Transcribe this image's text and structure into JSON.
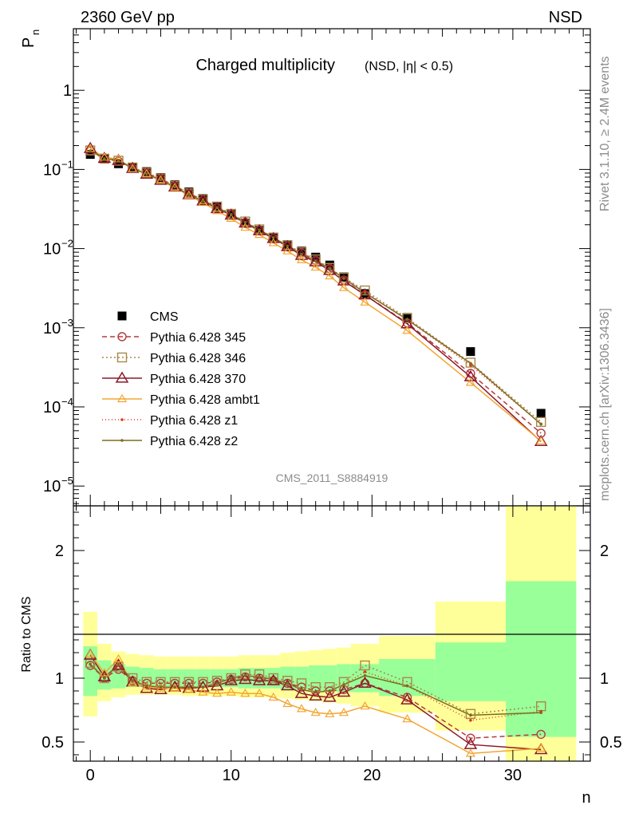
{
  "header": {
    "left": "2360 GeV pp",
    "right": "NSD"
  },
  "side_labels": {
    "top": "Rivet 3.1.10, ≥ 2.4M events",
    "bottom": "mcplots.cern.ch [arXiv:1306.3436]"
  },
  "colors": {
    "cms": "#000000",
    "p345": "#b5383d",
    "p346": "#a8884a",
    "p370": "#8b1a2b",
    "ambt1": "#f3a530",
    "z1": "#e8321e",
    "z2": "#7a6e1e",
    "band_inner": "#99ff99",
    "band_outer": "#ffff99"
  },
  "chart_data": [
    {
      "type": "line",
      "title": "Charged multiplicity",
      "subtitle": "(NSD, |η| < 0.5)",
      "ylabel": "P",
      "ylabel_sub": "n",
      "ylog": true,
      "ylim": [
        5.62e-06,
        6.0
      ],
      "xlim": [
        -1.2,
        35.5
      ],
      "yticks": [
        {
          "value": 1e-05,
          "base": "10",
          "exp": "−5"
        },
        {
          "value": 0.0001,
          "base": "10",
          "exp": "−4"
        },
        {
          "value": 0.001,
          "base": "10",
          "exp": "−3"
        },
        {
          "value": 0.01,
          "base": "10",
          "exp": "−2"
        },
        {
          "value": 0.1,
          "base": "10",
          "exp": "−1"
        },
        {
          "value": 1,
          "base": "1",
          "exp": ""
        }
      ],
      "watermark": "CMS_2011_S8884919",
      "legend_position": "center-left",
      "x": [
        0,
        1,
        2,
        3,
        4,
        5,
        6,
        7,
        8,
        9,
        10,
        11,
        12,
        13,
        14,
        15,
        16,
        17,
        18,
        19.5,
        22.5,
        27,
        32
      ],
      "series": [
        {
          "name": "CMS",
          "key": "cms",
          "marker": "square",
          "values": [
            0.155,
            0.136,
            0.118,
            0.106,
            0.094,
            0.079,
            0.064,
            0.052,
            0.043,
            0.034,
            0.027,
            0.021,
            0.017,
            0.0138,
            0.0112,
            0.0093,
            0.0078,
            0.0062,
            0.0044,
            0.0027,
            0.00135,
            0.0005,
            8.3e-05
          ]
        },
        {
          "name": "Pythia 6.428 345",
          "key": "p345",
          "marker": "circle",
          "dash": "6,4",
          "values": [
            0.171,
            0.136,
            0.127,
            0.104,
            0.09,
            0.076,
            0.062,
            0.05,
            0.041,
            0.033,
            0.027,
            0.0215,
            0.0172,
            0.0135,
            0.0108,
            0.0088,
            0.0071,
            0.0056,
            0.004,
            0.0026,
            0.00115,
            0.000265,
            4.65e-05
          ]
        },
        {
          "name": "Pythia 6.428 346",
          "key": "p346",
          "marker": "open-square",
          "dash": "2,3",
          "values": [
            0.174,
            0.137,
            0.129,
            0.106,
            0.091,
            0.077,
            0.062,
            0.05,
            0.042,
            0.034,
            0.0275,
            0.022,
            0.0175,
            0.0138,
            0.011,
            0.009,
            0.0073,
            0.0057,
            0.0043,
            0.00296,
            0.00132,
            0.000362,
            6.45e-05
          ]
        },
        {
          "name": "Pythia 6.428 370",
          "key": "p370",
          "marker": "triangle",
          "dash": "",
          "values": [
            0.184,
            0.138,
            0.13,
            0.103,
            0.087,
            0.073,
            0.06,
            0.048,
            0.04,
            0.032,
            0.0265,
            0.021,
            0.0168,
            0.0134,
            0.0106,
            0.0082,
            0.0068,
            0.0053,
            0.0039,
            0.0026,
            0.00112,
            0.00024,
            3.65e-05
          ]
        },
        {
          "name": "Pythia 6.428 ambt1",
          "key": "ambt1",
          "marker": "small-triangle",
          "dash": "",
          "values": [
            0.184,
            0.142,
            0.135,
            0.102,
            0.088,
            0.073,
            0.059,
            0.047,
            0.038,
            0.03,
            0.024,
            0.0185,
            0.015,
            0.0118,
            0.0093,
            0.0072,
            0.0058,
            0.0045,
            0.0032,
            0.0021,
            0.00092,
            0.000203,
            3.7e-05
          ]
        },
        {
          "name": "Pythia 6.428 z1",
          "key": "z1",
          "marker": "dot",
          "dash": "1,3",
          "values": [
            0.172,
            0.137,
            0.13,
            0.104,
            0.088,
            0.074,
            0.06,
            0.048,
            0.04,
            0.033,
            0.027,
            0.0215,
            0.0172,
            0.0138,
            0.0108,
            0.0085,
            0.007,
            0.0056,
            0.0042,
            0.00283,
            0.00127,
            0.000335,
            6.1e-05
          ]
        },
        {
          "name": "Pythia 6.428 z2",
          "key": "z2",
          "marker": "dot",
          "dash": "",
          "values": [
            0.172,
            0.137,
            0.131,
            0.104,
            0.088,
            0.074,
            0.06,
            0.048,
            0.04,
            0.033,
            0.027,
            0.0215,
            0.0172,
            0.0138,
            0.0108,
            0.0085,
            0.007,
            0.0056,
            0.0042,
            0.00276,
            0.00127,
            0.000355,
            6.05e-05
          ]
        }
      ]
    },
    {
      "type": "line",
      "ylabel": "Ratio to CMS",
      "xlabel": "n",
      "ylim": [
        0.35,
        2.35
      ],
      "xlim": [
        -1.2,
        35.5
      ],
      "xticks": [
        0,
        10,
        20,
        30
      ],
      "yticks": [
        0.5,
        1,
        2
      ],
      "reference": 1,
      "band_x": [
        -0.5,
        0.5,
        1.5,
        2.5,
        3.5,
        4.5,
        5.5,
        6.5,
        7.5,
        8.5,
        9.5,
        10.5,
        11.5,
        12.5,
        13.5,
        14.5,
        15.5,
        16.5,
        17.5,
        18.5,
        20.5,
        24.5,
        29.5,
        34.5
      ],
      "band_inner": [
        [
          0.86,
          1.25
        ],
        [
          0.91,
          1.14
        ],
        [
          0.92,
          1.11
        ],
        [
          0.93,
          1.09
        ],
        [
          0.93,
          1.08
        ],
        [
          0.93,
          1.07
        ],
        [
          0.93,
          1.07
        ],
        [
          0.93,
          1.07
        ],
        [
          0.93,
          1.07
        ],
        [
          0.93,
          1.07
        ],
        [
          0.93,
          1.07
        ],
        [
          0.92,
          1.08
        ],
        [
          0.92,
          1.08
        ],
        [
          0.92,
          1.08
        ],
        [
          0.91,
          1.09
        ],
        [
          0.91,
          1.09
        ],
        [
          0.9,
          1.1
        ],
        [
          0.9,
          1.1
        ],
        [
          0.89,
          1.11
        ],
        [
          0.89,
          1.11
        ],
        [
          0.86,
          1.15
        ],
        [
          0.82,
          1.28
        ],
        [
          0.54,
          1.76
        ]
      ],
      "band_outer": [
        [
          0.7,
          1.52
        ],
        [
          0.82,
          1.27
        ],
        [
          0.85,
          1.21
        ],
        [
          0.87,
          1.19
        ],
        [
          0.87,
          1.18
        ],
        [
          0.87,
          1.17
        ],
        [
          0.87,
          1.17
        ],
        [
          0.86,
          1.17
        ],
        [
          0.86,
          1.17
        ],
        [
          0.86,
          1.17
        ],
        [
          0.86,
          1.17
        ],
        [
          0.85,
          1.18
        ],
        [
          0.85,
          1.18
        ],
        [
          0.85,
          1.18
        ],
        [
          0.84,
          1.2
        ],
        [
          0.83,
          1.21
        ],
        [
          0.82,
          1.22
        ],
        [
          0.81,
          1.23
        ],
        [
          0.8,
          1.24
        ],
        [
          0.78,
          1.27
        ],
        [
          0.73,
          1.33
        ],
        [
          0.59,
          1.6
        ],
        [
          0.35,
          2.35
        ]
      ],
      "x": [
        0,
        1,
        2,
        3,
        4,
        5,
        6,
        7,
        8,
        9,
        10,
        11,
        12,
        13,
        14,
        15,
        16,
        17,
        18,
        19.5,
        22.5,
        27,
        32
      ],
      "series": [
        {
          "name": "Pythia 6.428 345",
          "key": "p345",
          "marker": "circle",
          "dash": "6,4",
          "values": [
            1.1,
            1.0,
            1.07,
            0.98,
            0.96,
            0.96,
            0.96,
            0.96,
            0.96,
            0.97,
            0.99,
            1.01,
            1.0,
            0.98,
            0.96,
            0.93,
            0.9,
            0.9,
            0.91,
            0.96,
            0.85,
            0.53,
            0.56
          ]
        },
        {
          "name": "Pythia 6.428 346",
          "key": "p346",
          "marker": "open-square",
          "dash": "2,3",
          "values": [
            1.12,
            1.0,
            1.09,
            1.0,
            0.97,
            0.97,
            0.97,
            0.97,
            0.97,
            0.98,
            1.0,
            1.03,
            1.03,
            1.0,
            0.98,
            0.96,
            0.93,
            0.93,
            0.97,
            1.1,
            0.97,
            0.72,
            0.78
          ]
        },
        {
          "name": "Pythia 6.428 370",
          "key": "p370",
          "marker": "triangle",
          "dash": "",
          "values": [
            1.18,
            1.01,
            1.1,
            0.97,
            0.92,
            0.91,
            0.93,
            0.92,
            0.93,
            0.94,
            0.98,
            0.99,
            0.98,
            0.98,
            0.94,
            0.88,
            0.86,
            0.85,
            0.89,
            0.96,
            0.83,
            0.48,
            0.44
          ]
        },
        {
          "name": "Pythia 6.428 ambt1",
          "key": "ambt1",
          "marker": "small-triangle",
          "dash": "",
          "values": [
            1.19,
            1.04,
            1.15,
            0.96,
            0.93,
            0.92,
            0.92,
            0.91,
            0.89,
            0.88,
            0.89,
            0.88,
            0.88,
            0.85,
            0.8,
            0.76,
            0.73,
            0.72,
            0.73,
            0.78,
            0.68,
            0.41,
            0.45
          ]
        },
        {
          "name": "Pythia 6.428 z1",
          "key": "z1",
          "marker": "dot",
          "dash": "1,3",
          "values": [
            1.11,
            1.0,
            1.1,
            0.98,
            0.94,
            0.93,
            0.93,
            0.93,
            0.93,
            0.96,
            1.0,
            1.02,
            1.01,
            0.99,
            0.96,
            0.91,
            0.89,
            0.9,
            0.95,
            1.05,
            0.94,
            0.67,
            0.74
          ]
        },
        {
          "name": "Pythia 6.428 z2",
          "key": "z2",
          "marker": "dot",
          "dash": "",
          "values": [
            1.11,
            1.0,
            1.11,
            0.98,
            0.94,
            0.93,
            0.93,
            0.93,
            0.93,
            0.96,
            1.0,
            1.02,
            1.01,
            0.99,
            0.96,
            0.91,
            0.89,
            0.9,
            0.95,
            1.02,
            0.94,
            0.71,
            0.73
          ]
        }
      ]
    }
  ]
}
